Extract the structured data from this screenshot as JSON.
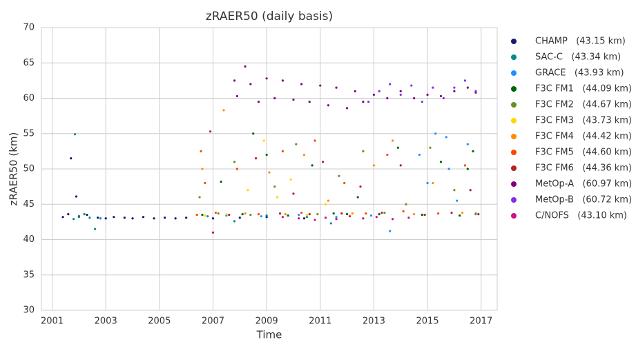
{
  "chart_data": {
    "type": "scatter",
    "title": "zRAER50 (daily basis)",
    "x_label": "Time",
    "y_label": "zRAER50 (km)",
    "xlim": [
      2000.6,
      2017.6
    ],
    "xticks": [
      2001,
      2003,
      2005,
      2007,
      2009,
      2011,
      2013,
      2015,
      2017
    ],
    "ylim": [
      30,
      70
    ],
    "yticks": [
      30,
      35,
      40,
      45,
      50,
      55,
      60,
      65,
      70
    ],
    "grid": true,
    "legend": "outside-right",
    "series": [
      {
        "name": "CHAMP   (43.15 km)",
        "color": "#191970",
        "x": [
          2001.4,
          2001.6,
          2001.7,
          2001.9,
          2002.0,
          2002.3,
          2002.7,
          2003.0,
          2003.3,
          2003.7,
          2004.0,
          2004.4,
          2004.8,
          2005.2,
          2005.6,
          2006.0,
          2007.0,
          2008.0,
          2009.0,
          2010.4
        ],
        "values": [
          43.2,
          43.6,
          51.5,
          46.1,
          43.3,
          43.5,
          43.1,
          43.0,
          43.2,
          43.1,
          43.0,
          43.2,
          43.0,
          43.1,
          43.0,
          43.1,
          43.0,
          43.1,
          43.2,
          43.0
        ]
      },
      {
        "name": "SAC-C   (43.34 km)",
        "color": "#008b8b",
        "x": [
          2001.8,
          2001.85,
          2002.0,
          2002.2,
          2002.4,
          2002.6,
          2002.8,
          2006.8,
          2007.8,
          2009.0,
          2010.5,
          2011.4
        ],
        "values": [
          42.9,
          54.9,
          43.2,
          43.6,
          43.1,
          41.5,
          43.0,
          43.3,
          42.6,
          43.4,
          43.2,
          42.3
        ]
      },
      {
        "name": "GRACE   (43.93 km)",
        "color": "#1e90ff",
        "x": [
          2007.5,
          2008.8,
          2010.2,
          2011.6,
          2012.9,
          2013.6,
          2014.7,
          2015.0,
          2015.3,
          2015.7,
          2015.8,
          2016.1,
          2016.5,
          2016.8
        ],
        "values": [
          43.4,
          43.3,
          43.5,
          43.2,
          43.4,
          41.2,
          52.0,
          48.0,
          55.0,
          54.5,
          50.0,
          45.5,
          53.5,
          43.6
        ]
      },
      {
        "name": "F3C FM1   (44.09 km)",
        "color": "#006400",
        "x": [
          2006.6,
          2007.3,
          2008.1,
          2008.5,
          2009.0,
          2009.8,
          2010.7,
          2011.5,
          2012.0,
          2012.4,
          2013.2,
          2013.9,
          2014.8,
          2015.5,
          2016.2,
          2016.5,
          2016.7
        ],
        "values": [
          43.5,
          48.2,
          43.6,
          55.0,
          52.0,
          43.4,
          50.5,
          43.7,
          43.6,
          46.0,
          43.6,
          53.0,
          43.5,
          51.0,
          43.4,
          50.0,
          52.5
        ]
      },
      {
        "name": "F3C FM2   (44.67 km)",
        "color": "#6b8e23",
        "x": [
          2006.5,
          2007.2,
          2007.8,
          2008.4,
          2009.3,
          2010.1,
          2010.9,
          2011.7,
          2012.6,
          2013.4,
          2014.2,
          2015.1,
          2016.0,
          2016.8
        ],
        "values": [
          46.0,
          43.7,
          51.0,
          43.5,
          47.5,
          53.5,
          43.6,
          49.0,
          52.5,
          43.8,
          45.0,
          53.0,
          47.0,
          43.7
        ]
      },
      {
        "name": "F3C FM3   (43.73 km)",
        "color": "#ffd700",
        "x": [
          2006.7,
          2007.5,
          2008.3,
          2008.9,
          2009.4,
          2009.9,
          2010.5,
          2011.2,
          2012.1
        ],
        "values": [
          43.4,
          43.6,
          47.0,
          54.0,
          46.0,
          48.5,
          43.5,
          45.0,
          43.4
        ]
      },
      {
        "name": "F3C FM4   (44.42 km)",
        "color": "#ff8c00",
        "x": [
          2006.6,
          2007.4,
          2008.2,
          2009.1,
          2009.7,
          2010.4,
          2011.3,
          2012.2,
          2013.0,
          2013.7,
          2014.5,
          2015.2,
          2016.3
        ],
        "values": [
          50.0,
          58.3,
          43.7,
          49.5,
          43.6,
          52.0,
          45.5,
          43.7,
          50.5,
          54.0,
          43.6,
          48.0,
          43.8
        ]
      },
      {
        "name": "F3C FM5   (44.60 km)",
        "color": "#ff4500",
        "x": [
          2006.4,
          2006.55,
          2006.7,
          2007.1,
          2007.9,
          2008.7,
          2009.6,
          2010.3,
          2010.8,
          2011.9,
          2012.7,
          2013.5,
          2014.1,
          2015.4,
          2016.4
        ],
        "values": [
          43.5,
          52.5,
          48.0,
          43.8,
          50.0,
          43.6,
          52.5,
          43.8,
          54.0,
          48.0,
          43.7,
          52.0,
          44.0,
          43.7,
          50.5
        ]
      },
      {
        "name": "F3C FM6   (44.36 km)",
        "color": "#b22222",
        "x": [
          2006.9,
          2007.0,
          2007.6,
          2008.6,
          2009.5,
          2010.0,
          2010.6,
          2011.1,
          2011.8,
          2012.5,
          2013.3,
          2014.0,
          2014.9,
          2015.9,
          2016.6,
          2016.9
        ],
        "values": [
          55.3,
          41.0,
          43.5,
          51.5,
          43.7,
          46.5,
          43.6,
          51.0,
          43.7,
          47.5,
          43.8,
          50.5,
          43.5,
          43.8,
          47.0,
          43.6
        ]
      },
      {
        "name": "MetOp-A   (60.97 km)",
        "color": "#800080",
        "x": [
          2007.8,
          2007.9,
          2008.2,
          2008.4,
          2008.7,
          2009.0,
          2009.3,
          2009.6,
          2010.0,
          2010.3,
          2010.6,
          2011.0,
          2011.3,
          2011.6,
          2012.0,
          2012.3,
          2012.6,
          2013.0,
          2013.5,
          2014.0,
          2014.5,
          2015.0,
          2015.5,
          2016.0,
          2016.5,
          2016.8
        ],
        "values": [
          62.5,
          60.3,
          64.5,
          62.0,
          59.5,
          62.8,
          60.0,
          62.5,
          59.8,
          62.0,
          59.5,
          61.8,
          59.0,
          61.5,
          58.6,
          61.0,
          59.5,
          60.5,
          60.0,
          61.0,
          60.0,
          60.5,
          60.3,
          61.0,
          61.5,
          60.8
        ]
      },
      {
        "name": "MetOp-B   (60.72 km)",
        "color": "#8a2be2",
        "x": [
          2012.8,
          2013.2,
          2013.6,
          2014.0,
          2014.4,
          2014.8,
          2015.2,
          2015.6,
          2016.0,
          2016.4,
          2016.8
        ],
        "values": [
          59.5,
          61.0,
          62.0,
          60.5,
          61.8,
          59.5,
          61.5,
          60.0,
          61.5,
          62.5,
          61.0
        ]
      },
      {
        "name": "C/NOFS   (43.10 km)",
        "color": "#c71585",
        "x": [
          2009.6,
          2010.2,
          2010.8,
          2011.2,
          2011.6,
          2012.1,
          2012.6,
          2013.1,
          2013.7,
          2014.3
        ],
        "values": [
          43.2,
          43.0,
          42.8,
          43.1,
          42.9,
          43.3,
          43.0,
          43.2,
          42.9,
          43.1
        ]
      }
    ]
  }
}
